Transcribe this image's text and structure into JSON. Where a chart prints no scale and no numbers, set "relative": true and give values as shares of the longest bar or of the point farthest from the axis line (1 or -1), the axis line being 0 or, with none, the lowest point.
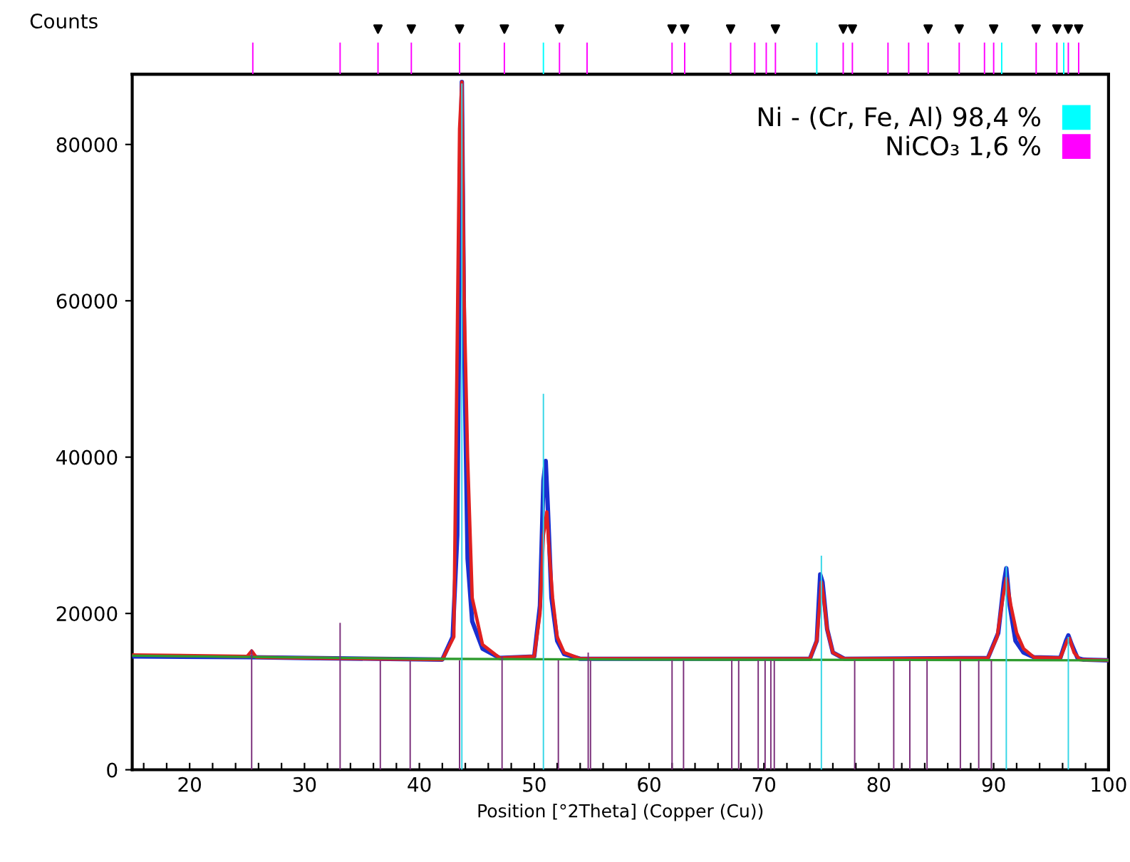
{
  "chart_data": [
    {
      "type": "line",
      "xlabel": "Position [°2Theta] (Copper (Cu))",
      "ylabel": "Counts",
      "xlim": [
        15,
        100
      ],
      "ylim": [
        0,
        89000
      ],
      "xticks": [
        {
          "value": 16,
          "label": null
        },
        {
          "value": 18,
          "label": null
        },
        20,
        {
          "value": 22,
          "label": null
        },
        {
          "value": 24,
          "label": null
        },
        {
          "value": 26,
          "label": null
        },
        {
          "value": 28,
          "label": null
        },
        30,
        {
          "value": 32,
          "label": null
        },
        {
          "value": 34,
          "label": null
        },
        {
          "value": 36,
          "label": null
        },
        {
          "value": 38,
          "label": null
        },
        40,
        {
          "value": 42,
          "label": null
        },
        {
          "value": 44,
          "label": null
        },
        {
          "value": 46,
          "label": null
        },
        {
          "value": 48,
          "label": null
        },
        50,
        {
          "value": 52,
          "label": null
        },
        {
          "value": 54,
          "label": null
        },
        {
          "value": 56,
          "label": null
        },
        {
          "value": 58,
          "label": null
        },
        60,
        {
          "value": 62,
          "label": null
        },
        {
          "value": 64,
          "label": null
        },
        {
          "value": 66,
          "label": null
        },
        {
          "value": 68,
          "label": null
        },
        70,
        {
          "value": 72,
          "label": null
        },
        {
          "value": 74,
          "label": null
        },
        {
          "value": 76,
          "label": null
        },
        {
          "value": 78,
          "label": null
        },
        80,
        {
          "value": 82,
          "label": null
        },
        {
          "value": 84,
          "label": null
        },
        {
          "value": 86,
          "label": null
        },
        {
          "value": 88,
          "label": null
        },
        90,
        {
          "value": 92,
          "label": null
        },
        {
          "value": 94,
          "label": null
        },
        {
          "value": 96,
          "label": null
        },
        {
          "value": 98,
          "label": null
        },
        100
      ],
      "yticks": [
        0,
        20000,
        40000,
        60000,
        80000
      ],
      "grid": false,
      "marker": "none",
      "line_style": "solid",
      "series": [
        {
          "type": "bar",
          "color": "#7a2e7a",
          "x": [
            25.4,
            33.1,
            36.6,
            39.2,
            43.5,
            47.2,
            52.1,
            54.7,
            54.9,
            62.0,
            63.0,
            67.2,
            67.8,
            69.5,
            70.1,
            70.6,
            70.9,
            77.9,
            81.3,
            82.7,
            84.2,
            87.1,
            88.7,
            89.8
          ],
          "values": [
            15400,
            18800,
            14000,
            14000,
            14000,
            14500,
            14000,
            15000,
            14000,
            14000,
            14000,
            14000,
            14000,
            14000,
            14000,
            14000,
            14000,
            14000,
            14000,
            14000,
            14000,
            14000,
            14000,
            14000
          ]
        },
        {
          "type": "bar",
          "color": "#33d6e6",
          "x": [
            43.7,
            50.8,
            75.0,
            91.1,
            96.5
          ],
          "values": [
            87800,
            48100,
            27400,
            26000,
            17000
          ]
        },
        {
          "type": "line",
          "color": "#2e9b2e",
          "x": [
            15,
            40,
            60,
            100
          ],
          "values": [
            14600,
            14200,
            14100,
            14000
          ]
        },
        {
          "type": "line",
          "color": "#e02020",
          "x": [
            15,
            25,
            25.4,
            25.8,
            30,
            42,
            43.0,
            43.3,
            43.5,
            43.7,
            43.9,
            44.2,
            44.6,
            45.5,
            47,
            50,
            50.5,
            50.8,
            51.1,
            51.3,
            51.6,
            52.0,
            52.6,
            54,
            74,
            74.6,
            75.0,
            75.2,
            75.5,
            76,
            77,
            89.5,
            90.3,
            90.8,
            91.1,
            91.5,
            92.0,
            92.6,
            93.5,
            95.8,
            96.4,
            96.6,
            97.0,
            97.5,
            100
          ],
          "values": [
            14700,
            14500,
            15200,
            14400,
            14300,
            14100,
            17000,
            55000,
            82000,
            88000,
            60000,
            40000,
            22000,
            16000,
            14300,
            14500,
            20000,
            30000,
            33000,
            28000,
            22000,
            17000,
            15000,
            14200,
            14200,
            16500,
            24000,
            22000,
            18000,
            15000,
            14200,
            14300,
            17000,
            22000,
            24500,
            21000,
            17500,
            15500,
            14400,
            14300,
            16500,
            16800,
            15000,
            14100,
            14000
          ]
        },
        {
          "type": "line",
          "color": "#1a2fd0",
          "x": [
            15,
            25,
            30,
            42,
            42.9,
            43.3,
            43.55,
            43.7,
            43.9,
            44.2,
            44.6,
            45.5,
            47,
            50,
            50.5,
            50.8,
            51.0,
            51.2,
            51.5,
            52.0,
            52.6,
            54,
            74,
            74.6,
            74.9,
            75.1,
            75.5,
            76,
            77,
            89.5,
            90.4,
            90.9,
            91.1,
            91.4,
            91.9,
            92.6,
            93.5,
            95.8,
            96.3,
            96.5,
            96.8,
            97.3,
            97.8,
            100
          ],
          "values": [
            14500,
            14400,
            14300,
            14100,
            17000,
            30000,
            73000,
            88000,
            55000,
            27000,
            19000,
            15500,
            14300,
            14500,
            21000,
            37000,
            39500,
            33000,
            22000,
            16500,
            14800,
            14200,
            14200,
            16500,
            25000,
            24000,
            18000,
            15000,
            14200,
            14300,
            17500,
            24000,
            25800,
            21000,
            16500,
            15000,
            14400,
            14300,
            16500,
            17200,
            16000,
            14300,
            14100,
            14000
          ]
        }
      ]
    },
    {
      "type": "bar",
      "relative": true,
      "xlim": [
        15,
        100
      ],
      "legend": "bottom right",
      "series": [
        {
          "name": "Ni - (Cr, Fe, Al) 98,4 %",
          "color": "#00ffff",
          "x": [
            50.8,
            74.6,
            90.7,
            96.1
          ],
          "values": [
            0.7,
            0.7,
            0.7,
            0.7
          ]
        },
        {
          "name": "NiCO₃ 1,6 %",
          "color": "#ff00ff",
          "x": [
            25.5,
            33.1,
            36.4,
            39.3,
            43.5,
            47.4,
            52.2,
            54.6,
            62.0,
            63.1,
            67.1,
            69.2,
            70.2,
            71.0,
            76.9,
            77.7,
            80.8,
            82.6,
            84.3,
            87.0,
            89.2,
            90.0,
            93.7,
            95.5,
            96.5,
            97.4
          ],
          "values": [
            0.7,
            0.7,
            0.7,
            0.7,
            0.7,
            0.7,
            0.7,
            0.7,
            0.7,
            0.7,
            0.7,
            0.7,
            0.7,
            0.7,
            0.7,
            0.7,
            0.7,
            0.7,
            0.7,
            0.7,
            0.7,
            0.7,
            0.7,
            0.7,
            0.7,
            0.7
          ]
        },
        {
          "type": "scatter",
          "marker": "triangle",
          "color": "#000000",
          "x": [
            36.4,
            39.3,
            43.5,
            47.4,
            52.2,
            62.0,
            63.1,
            67.1,
            71.0,
            76.9,
            77.7,
            84.3,
            87.0,
            90.0,
            93.7,
            95.5,
            96.5,
            97.4
          ],
          "values": [
            1,
            1,
            1,
            1,
            1,
            1,
            1,
            1,
            1,
            1,
            1,
            1,
            1,
            1,
            1,
            1,
            1,
            1
          ]
        }
      ]
    }
  ]
}
